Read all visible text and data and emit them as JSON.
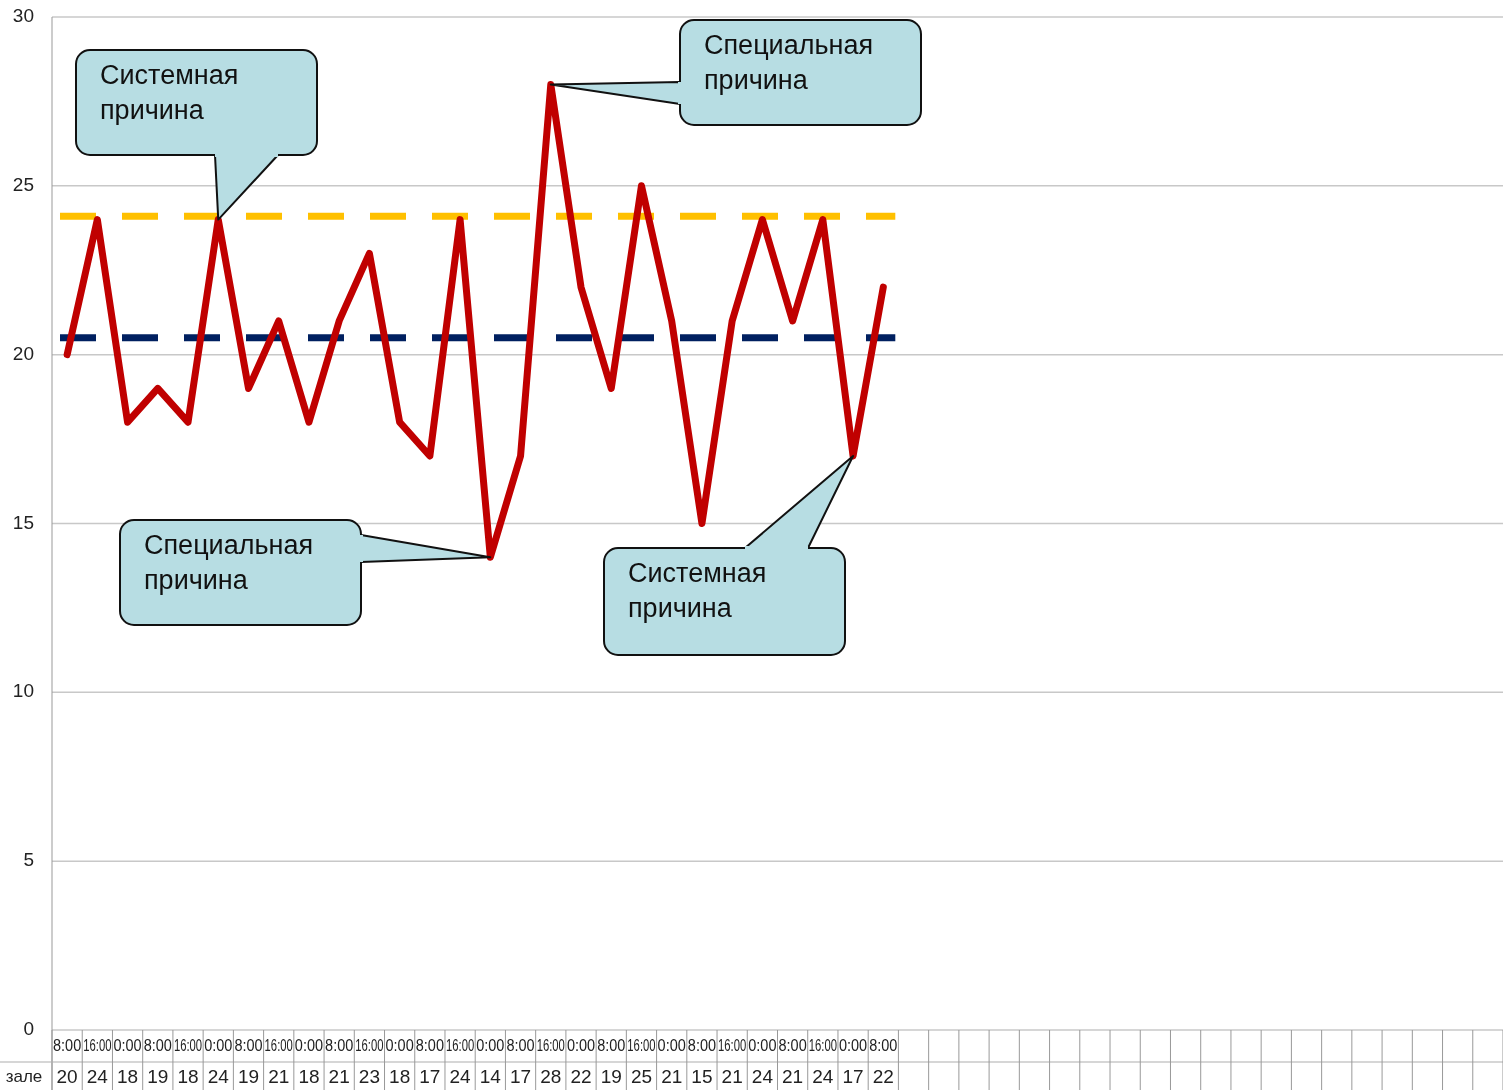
{
  "chart_data": {
    "type": "line",
    "categories": [
      "8:00",
      "16:00",
      "0:00",
      "8:00",
      "16:00",
      "0:00",
      "8:00",
      "16:00",
      "0:00",
      "8:00",
      "16:00",
      "0:00",
      "8:00",
      "16:00",
      "0:00",
      "8:00",
      "16:00",
      "0:00",
      "8:00",
      "16:00",
      "0:00",
      "8:00",
      "16:00",
      "0:00",
      "8:00",
      "16:00",
      "0:00",
      "8:00",
      null,
      null,
      null,
      null,
      null,
      null,
      null,
      null,
      null,
      null,
      null,
      null,
      null,
      null,
      null,
      null,
      null,
      null,
      null,
      null
    ],
    "series": [
      {
        "name": "зале",
        "color": "#c00000",
        "values": [
          20,
          24,
          18,
          19,
          18,
          24,
          19,
          21,
          18,
          21,
          23,
          18,
          17,
          24,
          14,
          17,
          28,
          22,
          19,
          25,
          21,
          15,
          21,
          24,
          21,
          24,
          17,
          22,
          null,
          null,
          null,
          null,
          null,
          null,
          null,
          null,
          null,
          null,
          null,
          null,
          null,
          null,
          null,
          null,
          null,
          null,
          null,
          null
        ]
      }
    ],
    "ylim": [
      0,
      30
    ],
    "yticks": [
      0,
      5,
      10,
      15,
      20,
      25,
      30
    ],
    "grid": "y",
    "marker": "none",
    "line_style": "solid",
    "data_labels": true,
    "ref_lines": [
      {
        "axis": "y",
        "value": 24.1,
        "color": "#ffc000",
        "line_style": "dashed"
      },
      {
        "axis": "y",
        "value": 20.5,
        "color": "#002060",
        "line_style": "dashed"
      }
    ],
    "annotations": [
      "Системная причина",
      "Специальная причина",
      "Специальная причина",
      "Системная причина"
    ]
  }
}
